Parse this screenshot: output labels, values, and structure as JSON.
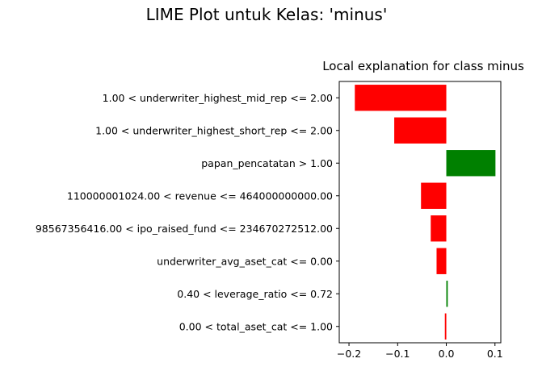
{
  "figure": {
    "suptitle": "LIME Plot untuk Kelas: 'minus'"
  },
  "chart_data": {
    "type": "bar",
    "orientation": "horizontal",
    "title": "Local explanation for class minus",
    "xlabel": "",
    "ylabel": "",
    "categories": [
      "1.00 < underwriter_highest_mid_rep <= 2.00",
      "1.00 < underwriter_highest_short_rep <= 2.00",
      "papan_pencatatan > 1.00",
      "110000001024.00 < revenue <= 464000000000.00",
      "98567356416.00 < ipo_raised_fund <= 234670272512.00",
      "underwriter_avg_aset_cat <= 0.00",
      "0.40 < leverage_ratio <= 0.72",
      "0.00 < total_aset_cat <= 1.00"
    ],
    "values": [
      -0.188,
      -0.107,
      0.101,
      -0.052,
      -0.032,
      -0.02,
      0.003,
      -0.003
    ],
    "xlim": [
      -0.22,
      0.112
    ],
    "xticks": [
      -0.2,
      -0.1,
      0.0,
      0.1
    ],
    "xtick_labels": [
      "−0.2",
      "−0.1",
      "0.0",
      "0.1"
    ],
    "grid": false,
    "colors": {
      "negative": "#ff0000",
      "positive": "#008000"
    }
  }
}
